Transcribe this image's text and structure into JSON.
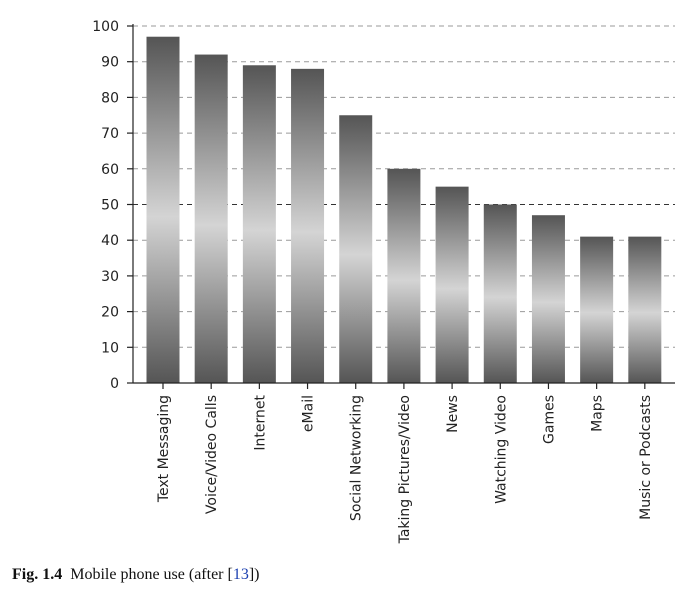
{
  "chart_data": {
    "type": "bar",
    "categories": [
      "Text Messaging",
      "Voice/Video Calls",
      "Internet",
      "eMail",
      "Social Networking",
      "Taking Pictures/Video",
      "News",
      "Watching Video",
      "Games",
      "Maps",
      "Music or Podcasts"
    ],
    "values": [
      97,
      92,
      89,
      88,
      75,
      60,
      55,
      50,
      47,
      41,
      41
    ],
    "ylim": [
      0,
      100
    ],
    "yticks": [
      0,
      10,
      20,
      30,
      40,
      50,
      60,
      70,
      80,
      90,
      100
    ],
    "ytick_labels": [
      "0",
      "10",
      "20",
      "30",
      "40",
      "50",
      "60",
      "70",
      "80",
      "90",
      "100"
    ],
    "grid": true,
    "legend": "none",
    "colors": {
      "bar_dark": "#555555",
      "bar_light": "#d4d4d4",
      "grid": "#9a9a9a",
      "grid_emphasis": "#333333",
      "axis": "#222222"
    }
  },
  "caption": {
    "fig_number": "Fig. 1.4",
    "text_before": "Mobile phone use (after [",
    "ref": "13",
    "text_after": "])"
  }
}
